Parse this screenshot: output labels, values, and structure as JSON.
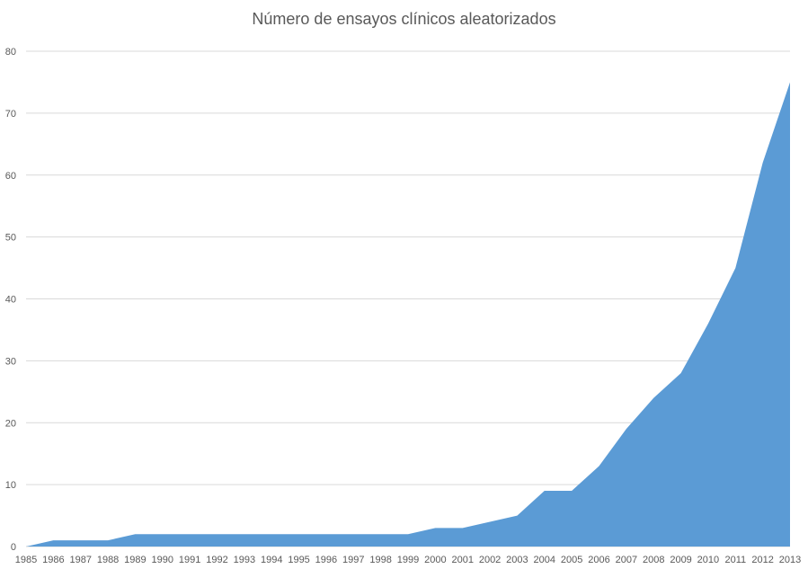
{
  "chart_data": {
    "type": "area",
    "title": "Número de ensayos clínicos aleatorizados",
    "xlabel": "",
    "ylabel": "",
    "x": [
      "1985",
      "1986",
      "1987",
      "1988",
      "1989",
      "1990",
      "1991",
      "1992",
      "1993",
      "1994",
      "1995",
      "1996",
      "1997",
      "1998",
      "1999",
      "2000",
      "2001",
      "2002",
      "2003",
      "2004",
      "2005",
      "2006",
      "2007",
      "2008",
      "2009",
      "2010",
      "2011",
      "2012",
      "2013"
    ],
    "series": [
      {
        "values": [
          0,
          1,
          1,
          1,
          2,
          2,
          2,
          2,
          2,
          2,
          2,
          2,
          2,
          2,
          2,
          3,
          3,
          4,
          5,
          9,
          9,
          13,
          19,
          24,
          28,
          36,
          45,
          62,
          75
        ]
      }
    ],
    "ylim": [
      0,
      80
    ],
    "yticks": [
      0,
      10,
      20,
      30,
      40,
      50,
      60,
      70,
      80
    ],
    "grid": true,
    "legend": "none",
    "colors": {
      "area": "#5b9bd5",
      "grid": "#d9d9d9",
      "axis_text": "#595959"
    }
  }
}
